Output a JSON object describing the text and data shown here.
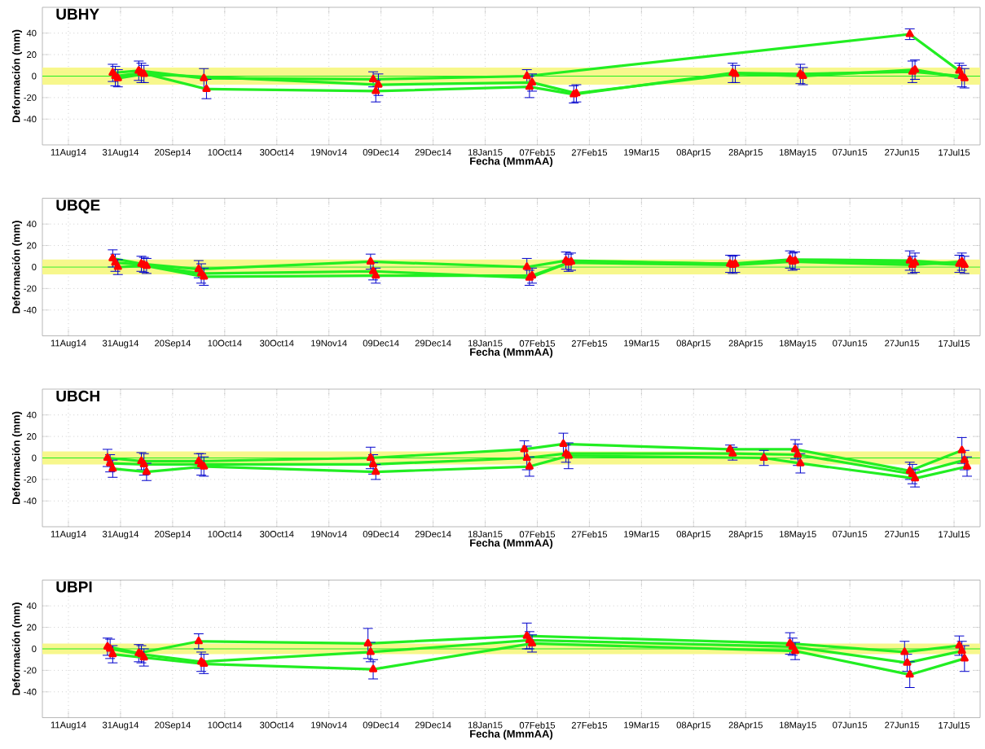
{
  "chart_data": [
    {
      "type": "line",
      "title": "UBHY",
      "xlabel": "Fecha (MmmAA)",
      "ylabel": "Deformación (mm)",
      "grid": true,
      "marker": "triangle",
      "line_style": "solid",
      "xlim": [
        "2014-08-01",
        "2015-07-27"
      ],
      "ylim": [
        -64,
        64
      ],
      "yticks": [
        -40,
        -20,
        0,
        20,
        40
      ],
      "xticks": [
        {
          "value": "2014-08-11",
          "label": "11Aug14"
        },
        {
          "value": "2014-08-31",
          "label": "31Aug14"
        },
        {
          "value": "2014-09-20",
          "label": "20Sep14"
        },
        {
          "value": "2014-10-10",
          "label": "10Oct14"
        },
        {
          "value": "2014-10-30",
          "label": "30Oct14"
        },
        {
          "value": "2014-11-19",
          "label": "19Nov14"
        },
        {
          "value": "2014-12-09",
          "label": "09Dec14"
        },
        {
          "value": "2014-12-29",
          "label": "29Dec14"
        },
        {
          "value": "2015-01-18",
          "label": "18Jan15"
        },
        {
          "value": "2015-02-07",
          "label": "07Feb15"
        },
        {
          "value": "2015-02-27",
          "label": "27Feb15"
        },
        {
          "value": "2015-03-19",
          "label": "19Mar15"
        },
        {
          "value": "2015-04-08",
          "label": "08Apr15"
        },
        {
          "value": "2015-04-28",
          "label": "28Apr15"
        },
        {
          "value": "2015-05-18",
          "label": "18May15"
        },
        {
          "value": "2015-06-07",
          "label": "07Jun15"
        },
        {
          "value": "2015-06-27",
          "label": "27Jun15"
        },
        {
          "value": "2015-07-17",
          "label": "17Jul15"
        }
      ],
      "bands": [
        {
          "axis": "y",
          "from": -8,
          "to": 8,
          "color": "#f7f78c"
        }
      ],
      "ref_lines": [
        {
          "axis": "y",
          "value": 0,
          "color": "#22ee22"
        }
      ],
      "series": [
        {
          "color": "#22ee22",
          "x": [
            "2014-08-28",
            "2014-09-07",
            "2014-10-02",
            "2014-12-06",
            "2015-02-03",
            "2015-06-30",
            "2015-07-19"
          ],
          "values": [
            3,
            5,
            -2,
            -3,
            0,
            39,
            5
          ],
          "errors": [
            8,
            9,
            9,
            7,
            6,
            5,
            7
          ]
        },
        {
          "color": "#22ee22",
          "x": [
            "2014-08-29",
            "2014-09-08",
            "2014-10-03",
            "2014-12-07",
            "2015-02-04",
            "2015-02-21",
            "2015-04-23",
            "2015-05-19",
            "2015-07-01",
            "2015-07-20"
          ],
          "values": [
            0,
            3,
            -12,
            -14,
            -10,
            -17,
            3,
            2,
            4,
            0
          ],
          "errors": [
            9,
            9,
            9,
            10,
            10,
            8,
            9,
            9,
            10,
            10
          ]
        },
        {
          "color": "#22ee22",
          "x": [
            "2014-08-30",
            "2014-09-09",
            "2014-12-08",
            "2015-02-05",
            "2015-02-22",
            "2015-04-24",
            "2015-05-20",
            "2015-07-02",
            "2015-07-21"
          ],
          "values": [
            -2,
            2,
            -8,
            -6,
            -16,
            2,
            0,
            6,
            -2
          ],
          "errors": [
            8,
            8,
            10,
            8,
            8,
            8,
            8,
            9,
            9
          ]
        }
      ]
    },
    {
      "type": "line",
      "title": "UBQE",
      "xlabel": "Fecha (MmmAA)",
      "ylabel": "Deformación (mm)",
      "grid": true,
      "marker": "triangle",
      "line_style": "solid",
      "xlim": [
        "2014-08-01",
        "2015-07-27"
      ],
      "ylim": [
        -64,
        64
      ],
      "yticks": [
        -40,
        -20,
        0,
        20,
        40
      ],
      "xticks": [
        {
          "value": "2014-08-11",
          "label": "11Aug14"
        },
        {
          "value": "2014-08-31",
          "label": "31Aug14"
        },
        {
          "value": "2014-09-20",
          "label": "20Sep14"
        },
        {
          "value": "2014-10-10",
          "label": "10Oct14"
        },
        {
          "value": "2014-10-30",
          "label": "30Oct14"
        },
        {
          "value": "2014-11-19",
          "label": "19Nov14"
        },
        {
          "value": "2014-12-09",
          "label": "09Dec14"
        },
        {
          "value": "2014-12-29",
          "label": "29Dec14"
        },
        {
          "value": "2015-01-18",
          "label": "18Jan15"
        },
        {
          "value": "2015-02-07",
          "label": "07Feb15"
        },
        {
          "value": "2015-02-27",
          "label": "27Feb15"
        },
        {
          "value": "2015-03-19",
          "label": "19Mar15"
        },
        {
          "value": "2015-04-08",
          "label": "08Apr15"
        },
        {
          "value": "2015-04-28",
          "label": "28Apr15"
        },
        {
          "value": "2015-05-18",
          "label": "18May15"
        },
        {
          "value": "2015-06-07",
          "label": "07Jun15"
        },
        {
          "value": "2015-06-27",
          "label": "27Jun15"
        },
        {
          "value": "2015-07-17",
          "label": "17Jul15"
        }
      ],
      "bands": [
        {
          "axis": "y",
          "from": -7,
          "to": 7,
          "color": "#f7f78c"
        }
      ],
      "ref_lines": [
        {
          "axis": "y",
          "value": 0,
          "color": "#22ee22"
        }
      ],
      "series": [
        {
          "color": "#22ee22",
          "x": [
            "2014-08-28",
            "2014-09-08",
            "2014-09-30",
            "2014-12-05",
            "2015-02-03",
            "2015-02-18",
            "2015-04-22",
            "2015-05-15",
            "2015-06-30",
            "2015-07-19"
          ],
          "values": [
            8,
            3,
            -2,
            5,
            0,
            6,
            3,
            7,
            6,
            3
          ],
          "errors": [
            8,
            7,
            8,
            7,
            8,
            8,
            8,
            8,
            9,
            8
          ]
        },
        {
          "color": "#22ee22",
          "x": [
            "2014-08-29",
            "2014-09-09",
            "2014-10-01",
            "2014-12-06",
            "2015-02-04",
            "2015-02-19",
            "2015-04-23",
            "2015-05-16",
            "2015-07-01",
            "2015-07-20"
          ],
          "values": [
            4,
            2,
            -6,
            -4,
            -10,
            4,
            2,
            5,
            2,
            5
          ],
          "errors": [
            8,
            7,
            9,
            8,
            7,
            8,
            8,
            8,
            8,
            8
          ]
        },
        {
          "color": "#22ee22",
          "x": [
            "2014-08-30",
            "2014-09-10",
            "2014-10-02",
            "2014-12-07",
            "2015-02-05",
            "2015-02-20",
            "2015-04-24",
            "2015-05-17",
            "2015-07-02",
            "2015-07-21"
          ],
          "values": [
            0,
            1,
            -9,
            -8,
            -8,
            5,
            3,
            6,
            4,
            2
          ],
          "errors": [
            7,
            7,
            8,
            7,
            7,
            8,
            8,
            8,
            9,
            8
          ]
        }
      ]
    },
    {
      "type": "line",
      "title": "UBCH",
      "xlabel": "Fecha (MmmAA)",
      "ylabel": "Deformación (mm)",
      "grid": true,
      "marker": "triangle",
      "line_style": "solid",
      "xlim": [
        "2014-08-01",
        "2015-07-27"
      ],
      "ylim": [
        -64,
        64
      ],
      "yticks": [
        -40,
        -20,
        0,
        20,
        40
      ],
      "xticks": [
        {
          "value": "2014-08-11",
          "label": "11Aug14"
        },
        {
          "value": "2014-08-31",
          "label": "31Aug14"
        },
        {
          "value": "2014-09-20",
          "label": "20Sep14"
        },
        {
          "value": "2014-10-10",
          "label": "10Oct14"
        },
        {
          "value": "2014-10-30",
          "label": "30Oct14"
        },
        {
          "value": "2014-11-19",
          "label": "19Nov14"
        },
        {
          "value": "2014-12-09",
          "label": "09Dec14"
        },
        {
          "value": "2014-12-29",
          "label": "29Dec14"
        },
        {
          "value": "2015-01-18",
          "label": "18Jan15"
        },
        {
          "value": "2015-02-07",
          "label": "07Feb15"
        },
        {
          "value": "2015-02-27",
          "label": "27Feb15"
        },
        {
          "value": "2015-03-19",
          "label": "19Mar15"
        },
        {
          "value": "2015-04-08",
          "label": "08Apr15"
        },
        {
          "value": "2015-04-28",
          "label": "28Apr15"
        },
        {
          "value": "2015-05-18",
          "label": "18May15"
        },
        {
          "value": "2015-06-07",
          "label": "07Jun15"
        },
        {
          "value": "2015-06-27",
          "label": "27Jun15"
        },
        {
          "value": "2015-07-17",
          "label": "17Jul15"
        }
      ],
      "bands": [
        {
          "axis": "y",
          "from": -6,
          "to": 6,
          "color": "#f7f78c"
        }
      ],
      "ref_lines": [
        {
          "axis": "y",
          "value": 0,
          "color": "#22ee22"
        }
      ],
      "series": [
        {
          "color": "#22ee22",
          "x": [
            "2014-08-26",
            "2014-09-08",
            "2014-09-30",
            "2014-12-05",
            "2015-02-02",
            "2015-02-17",
            "2015-04-22",
            "2015-05-17",
            "2015-06-30",
            "2015-07-20"
          ],
          "values": [
            0,
            -3,
            -3,
            0,
            8,
            13,
            8,
            8,
            -12,
            7
          ],
          "errors": [
            8,
            8,
            7,
            10,
            8,
            10,
            4,
            9,
            8,
            12
          ]
        },
        {
          "color": "#22ee22",
          "x": [
            "2014-08-27",
            "2014-09-09",
            "2014-10-01",
            "2014-12-06",
            "2015-02-03",
            "2015-02-18",
            "2015-04-23",
            "2015-05-18",
            "2015-07-01",
            "2015-07-21"
          ],
          "values": [
            -5,
            -6,
            -6,
            -6,
            0,
            4,
            4,
            3,
            -15,
            -2
          ],
          "errors": [
            8,
            10,
            10,
            9,
            11,
            8,
            6,
            10,
            9,
            9
          ]
        },
        {
          "color": "#22ee22",
          "x": [
            "2014-08-28",
            "2014-09-10",
            "2014-10-02",
            "2014-12-07",
            "2015-02-04",
            "2015-02-19",
            "2015-05-05",
            "2015-05-19",
            "2015-07-02",
            "2015-07-22"
          ],
          "values": [
            -10,
            -13,
            -8,
            -13,
            -8,
            2,
            0,
            -5,
            -19,
            -8
          ],
          "errors": [
            8,
            8,
            9,
            7,
            9,
            12,
            7,
            9,
            8,
            9
          ]
        }
      ]
    },
    {
      "type": "line",
      "title": "UBPI",
      "xlabel": "Fecha (MmmAA)",
      "ylabel": "Deformación (mm)",
      "grid": true,
      "marker": "triangle",
      "line_style": "solid",
      "xlim": [
        "2014-08-01",
        "2015-07-27"
      ],
      "ylim": [
        -64,
        64
      ],
      "yticks": [
        -40,
        -20,
        0,
        20,
        40
      ],
      "xticks": [
        {
          "value": "2014-08-11",
          "label": "11Aug14"
        },
        {
          "value": "2014-08-31",
          "label": "31Aug14"
        },
        {
          "value": "2014-09-20",
          "label": "20Sep14"
        },
        {
          "value": "2014-10-10",
          "label": "10Oct14"
        },
        {
          "value": "2014-10-30",
          "label": "30Oct14"
        },
        {
          "value": "2014-11-19",
          "label": "19Nov14"
        },
        {
          "value": "2014-12-09",
          "label": "09Dec14"
        },
        {
          "value": "2014-12-29",
          "label": "29Dec14"
        },
        {
          "value": "2015-01-18",
          "label": "18Jan15"
        },
        {
          "value": "2015-02-07",
          "label": "07Feb15"
        },
        {
          "value": "2015-02-27",
          "label": "27Feb15"
        },
        {
          "value": "2015-03-19",
          "label": "19Mar15"
        },
        {
          "value": "2015-04-08",
          "label": "08Apr15"
        },
        {
          "value": "2015-04-28",
          "label": "28Apr15"
        },
        {
          "value": "2015-05-18",
          "label": "18May15"
        },
        {
          "value": "2015-06-07",
          "label": "07Jun15"
        },
        {
          "value": "2015-06-27",
          "label": "27Jun15"
        },
        {
          "value": "2015-07-17",
          "label": "17Jul15"
        }
      ],
      "bands": [
        {
          "axis": "y",
          "from": -5,
          "to": 5,
          "color": "#f7f78c"
        }
      ],
      "ref_lines": [
        {
          "axis": "y",
          "value": 0,
          "color": "#22ee22"
        }
      ],
      "series": [
        {
          "color": "#22ee22",
          "x": [
            "2014-08-26",
            "2014-09-07",
            "2014-09-30",
            "2014-12-04",
            "2015-02-03",
            "2015-05-15",
            "2015-06-28",
            "2015-07-19"
          ],
          "values": [
            2,
            -4,
            7,
            5,
            12,
            5,
            -3,
            3
          ],
          "errors": [
            8,
            8,
            7,
            14,
            12,
            10,
            10,
            9
          ]
        },
        {
          "color": "#22ee22",
          "x": [
            "2014-08-27",
            "2014-09-08",
            "2014-10-01",
            "2014-12-05",
            "2015-02-04",
            "2015-05-16",
            "2015-06-29",
            "2015-07-20"
          ],
          "values": [
            0,
            -5,
            -12,
            -3,
            8,
            2,
            -13,
            -2
          ],
          "errors": [
            9,
            8,
            9,
            9,
            8,
            8,
            8,
            9
          ]
        },
        {
          "color": "#22ee22",
          "x": [
            "2014-08-28",
            "2014-09-09",
            "2014-10-02",
            "2014-12-06",
            "2015-02-05",
            "2015-05-17",
            "2015-06-30",
            "2015-07-21"
          ],
          "values": [
            -5,
            -8,
            -14,
            -19,
            5,
            -2,
            -24,
            -9
          ],
          "errors": [
            8,
            8,
            9,
            9,
            8,
            8,
            12,
            12
          ]
        }
      ]
    }
  ]
}
